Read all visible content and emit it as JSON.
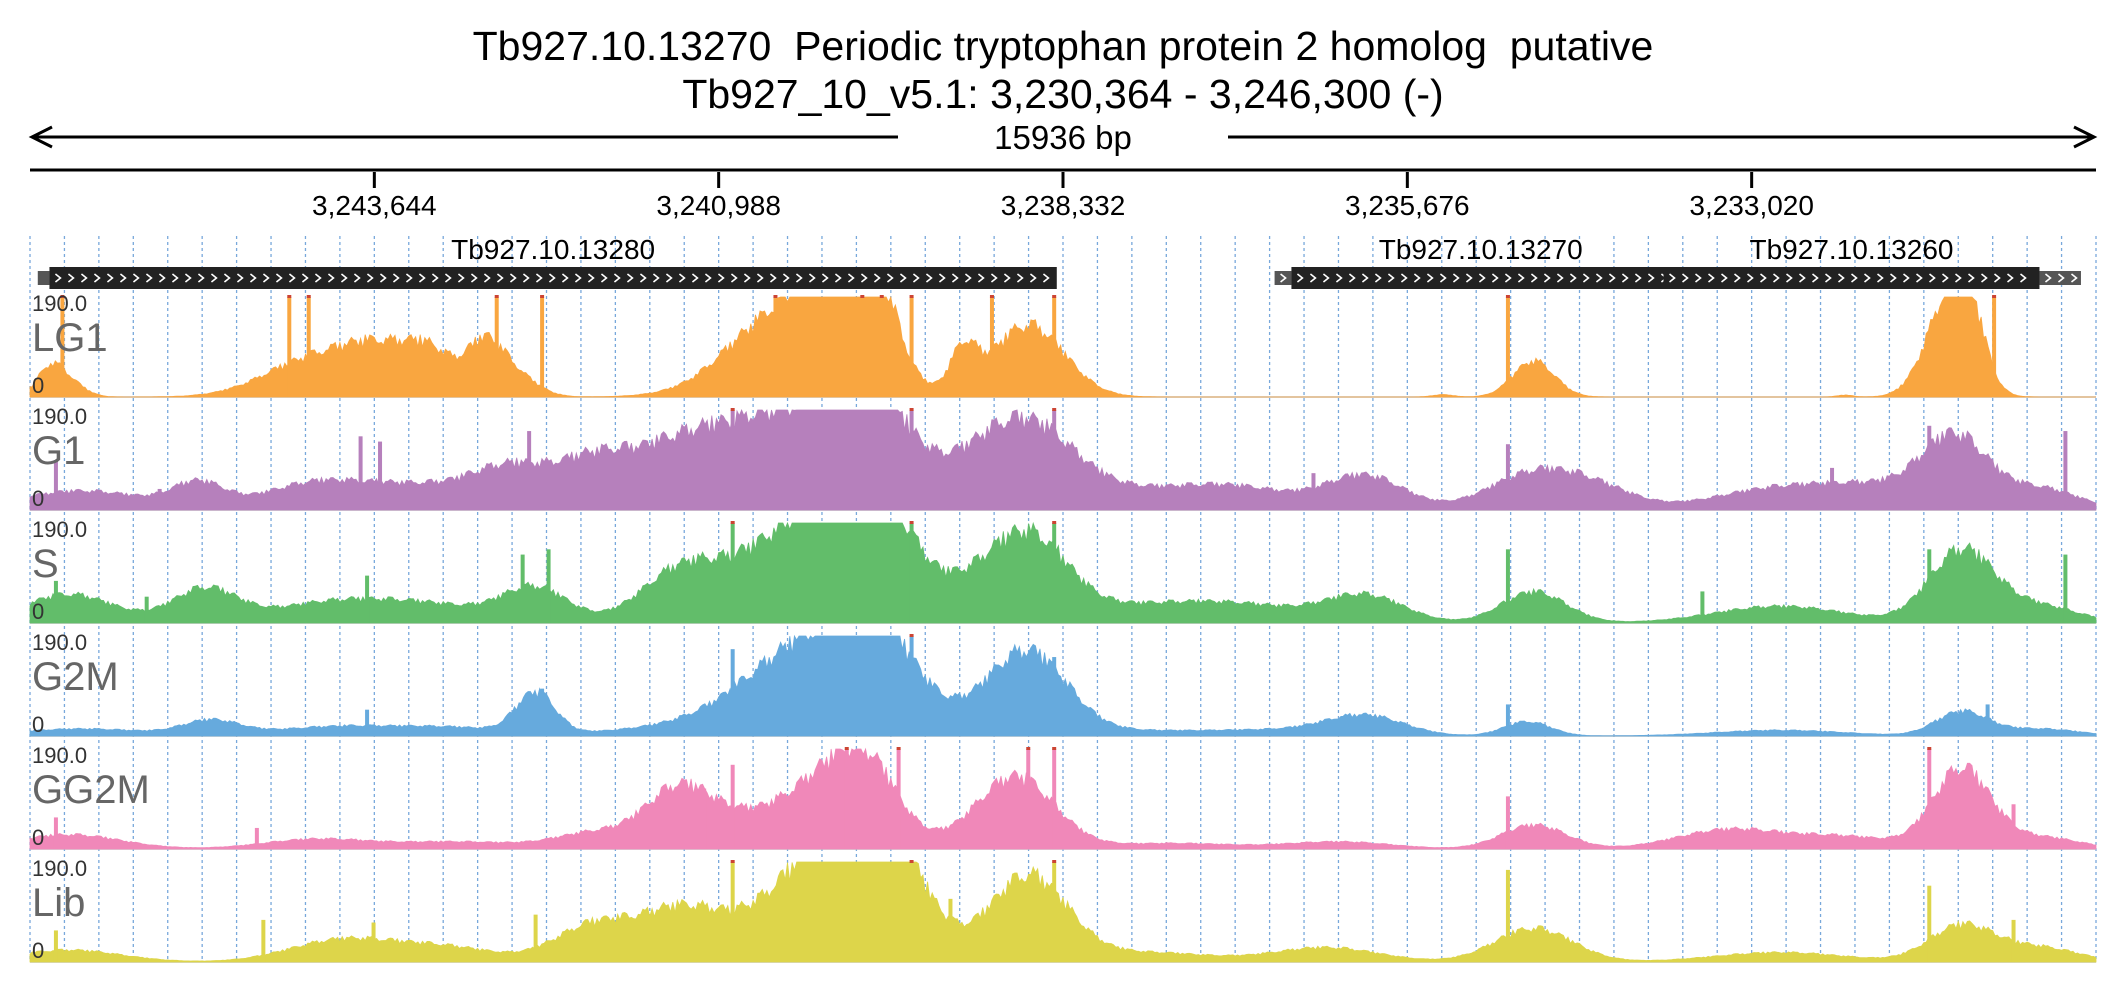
{
  "title": "Tb927.10.13270  Periodic tryptophan protein 2 homolog  putative",
  "subtitle": "Tb927_10_v5.1: 3,230,364 - 3,246,300 (-)",
  "chart_data": {
    "type": "area",
    "chromosome": "Tb927_10_v5.1",
    "region": {
      "start": 3230364,
      "end": 3246300,
      "strand": "-"
    },
    "span_label": "15936 bp",
    "ticks": [
      {
        "pos": 3243644,
        "label": "3,243,644"
      },
      {
        "pos": 3240988,
        "label": "3,240,988"
      },
      {
        "pos": 3238332,
        "label": "3,238,332"
      },
      {
        "pos": 3235676,
        "label": "3,235,676"
      },
      {
        "pos": 3233020,
        "label": "3,233,020"
      }
    ],
    "genes": [
      {
        "name": "Tb927.10.13280",
        "start": 3238380,
        "end": 3246150,
        "label_visible": true
      },
      {
        "name": "Tb927.10.13270",
        "start": 3233650,
        "end": 3236570,
        "label_visible": true
      },
      {
        "name": "Tb927.10.13260",
        "start": 3230800,
        "end": 3233700,
        "label_visible": true
      }
    ],
    "utrs": [
      {
        "start": 3246150,
        "end": 3246240
      },
      {
        "start": 3236570,
        "end": 3236700
      },
      {
        "start": 3233700,
        "end": 3234040
      },
      {
        "start": 3230480,
        "end": 3230800
      }
    ],
    "track_range": {
      "min": 0,
      "max": 190.0,
      "min_label": "0",
      "max_label": "190.0"
    },
    "series": [
      {
        "name": "LG1",
        "color": "#f9a640",
        "peaks": [
          {
            "c": 3246150,
            "w": 100,
            "h": 55
          },
          {
            "c": 3246000,
            "w": 120,
            "h": 30
          },
          {
            "c": 3244100,
            "w": 380,
            "h": 80
          },
          {
            "c": 3243600,
            "w": 260,
            "h": 75
          },
          {
            "c": 3243200,
            "w": 200,
            "h": 82
          },
          {
            "c": 3242800,
            "w": 130,
            "h": 85
          },
          {
            "c": 3242600,
            "w": 180,
            "h": 55
          },
          {
            "c": 3240400,
            "w": 450,
            "h": 178
          },
          {
            "c": 3240050,
            "w": 250,
            "h": 175
          },
          {
            "c": 3239800,
            "w": 180,
            "h": 150
          },
          {
            "c": 3239100,
            "w": 100,
            "h": 85
          },
          {
            "c": 3238600,
            "w": 280,
            "h": 150
          },
          {
            "c": 3240850,
            "w": 200,
            "h": 12
          },
          {
            "c": 3234700,
            "w": 160,
            "h": 75
          },
          {
            "c": 3235400,
            "w": 80,
            "h": 5
          },
          {
            "c": 3231500,
            "w": 180,
            "h": 190
          },
          {
            "c": 3231350,
            "w": 120,
            "h": 120
          },
          {
            "c": 3232300,
            "w": 60,
            "h": 4
          }
        ],
        "spikes": [
          {
            "x": 3246050,
            "h": 190
          },
          {
            "x": 3244300,
            "h": 190
          },
          {
            "x": 3244150,
            "h": 190
          },
          {
            "x": 3242700,
            "h": 190
          },
          {
            "x": 3242350,
            "h": 190
          },
          {
            "x": 3240550,
            "h": 190
          },
          {
            "x": 3239880,
            "h": 190
          },
          {
            "x": 3239730,
            "h": 190
          },
          {
            "x": 3239500,
            "h": 190
          },
          {
            "x": 3238880,
            "h": 190
          },
          {
            "x": 3238400,
            "h": 190
          },
          {
            "x": 3234900,
            "h": 190
          },
          {
            "x": 3231150,
            "h": 190
          }
        ]
      },
      {
        "name": "G1",
        "color": "#b680bc",
        "peaks": [
          {
            "c": 3245900,
            "w": 500,
            "h": 40
          },
          {
            "c": 3245000,
            "w": 200,
            "h": 50
          },
          {
            "c": 3244100,
            "w": 400,
            "h": 55
          },
          {
            "c": 3243300,
            "w": 400,
            "h": 45
          },
          {
            "c": 3242600,
            "w": 300,
            "h": 80
          },
          {
            "c": 3241950,
            "w": 300,
            "h": 95
          },
          {
            "c": 3241300,
            "w": 350,
            "h": 110
          },
          {
            "c": 3240700,
            "w": 400,
            "h": 60
          },
          {
            "c": 3240300,
            "w": 500,
            "h": 160
          },
          {
            "c": 3239800,
            "w": 300,
            "h": 165
          },
          {
            "c": 3239050,
            "w": 300,
            "h": 55
          },
          {
            "c": 3238600,
            "w": 350,
            "h": 160
          },
          {
            "c": 3237900,
            "w": 500,
            "h": 35
          },
          {
            "c": 3237000,
            "w": 450,
            "h": 45
          },
          {
            "c": 3236000,
            "w": 300,
            "h": 70
          },
          {
            "c": 3234700,
            "w": 350,
            "h": 75
          },
          {
            "c": 3234200,
            "w": 300,
            "h": 35
          },
          {
            "c": 3232800,
            "w": 500,
            "h": 45
          },
          {
            "c": 3232000,
            "w": 400,
            "h": 40
          },
          {
            "c": 3231450,
            "w": 250,
            "h": 140
          },
          {
            "c": 3230800,
            "w": 300,
            "h": 45
          }
        ],
        "spikes": [
          {
            "x": 3246100,
            "h": 95
          },
          {
            "x": 3245300,
            "h": 40
          },
          {
            "x": 3243750,
            "h": 140
          },
          {
            "x": 3243600,
            "h": 130
          },
          {
            "x": 3242450,
            "h": 150
          },
          {
            "x": 3241500,
            "h": 120
          },
          {
            "x": 3240880,
            "h": 190
          },
          {
            "x": 3239500,
            "h": 190
          },
          {
            "x": 3238400,
            "h": 190
          },
          {
            "x": 3239200,
            "h": 100
          },
          {
            "x": 3236400,
            "h": 70
          },
          {
            "x": 3234900,
            "h": 125
          },
          {
            "x": 3232400,
            "h": 80
          },
          {
            "x": 3231650,
            "h": 160
          },
          {
            "x": 3230600,
            "h": 150
          }
        ]
      },
      {
        "name": "S",
        "color": "#62bd6a",
        "peaks": [
          {
            "c": 3246000,
            "w": 350,
            "h": 60
          },
          {
            "c": 3244950,
            "w": 250,
            "h": 70
          },
          {
            "c": 3244000,
            "w": 450,
            "h": 40
          },
          {
            "c": 3243200,
            "w": 450,
            "h": 35
          },
          {
            "c": 3242400,
            "w": 250,
            "h": 70
          },
          {
            "c": 3241300,
            "w": 300,
            "h": 85
          },
          {
            "c": 3240700,
            "w": 500,
            "h": 60
          },
          {
            "c": 3240200,
            "w": 450,
            "h": 175
          },
          {
            "c": 3239750,
            "w": 300,
            "h": 170
          },
          {
            "c": 3239050,
            "w": 250,
            "h": 45
          },
          {
            "c": 3238600,
            "w": 300,
            "h": 175
          },
          {
            "c": 3237800,
            "w": 500,
            "h": 30
          },
          {
            "c": 3236950,
            "w": 500,
            "h": 35
          },
          {
            "c": 3236000,
            "w": 300,
            "h": 55
          },
          {
            "c": 3234700,
            "w": 250,
            "h": 65
          },
          {
            "c": 3232800,
            "w": 500,
            "h": 35
          },
          {
            "c": 3231400,
            "w": 250,
            "h": 150
          },
          {
            "c": 3230800,
            "w": 300,
            "h": 35
          }
        ],
        "spikes": [
          {
            "x": 3246100,
            "h": 80
          },
          {
            "x": 3245400,
            "h": 50
          },
          {
            "x": 3243700,
            "h": 90
          },
          {
            "x": 3242500,
            "h": 130
          },
          {
            "x": 3242300,
            "h": 140
          },
          {
            "x": 3240880,
            "h": 190
          },
          {
            "x": 3239500,
            "h": 190
          },
          {
            "x": 3238400,
            "h": 190
          },
          {
            "x": 3234900,
            "h": 140
          },
          {
            "x": 3233400,
            "h": 60
          },
          {
            "x": 3231650,
            "h": 140
          },
          {
            "x": 3230600,
            "h": 130
          }
        ]
      },
      {
        "name": "G2M",
        "color": "#66aadd",
        "peaks": [
          {
            "c": 3245900,
            "w": 500,
            "h": 15
          },
          {
            "c": 3244900,
            "w": 220,
            "h": 30
          },
          {
            "c": 3243900,
            "w": 500,
            "h": 20
          },
          {
            "c": 3243000,
            "w": 400,
            "h": 15
          },
          {
            "c": 3242400,
            "w": 150,
            "h": 85
          },
          {
            "c": 3241500,
            "w": 500,
            "h": 12
          },
          {
            "c": 3240700,
            "w": 450,
            "h": 45
          },
          {
            "c": 3240200,
            "w": 450,
            "h": 165
          },
          {
            "c": 3239750,
            "w": 300,
            "h": 150
          },
          {
            "c": 3239050,
            "w": 300,
            "h": 20
          },
          {
            "c": 3238600,
            "w": 300,
            "h": 170
          },
          {
            "c": 3237800,
            "w": 500,
            "h": 10
          },
          {
            "c": 3236700,
            "w": 500,
            "h": 12
          },
          {
            "c": 3236000,
            "w": 300,
            "h": 40
          },
          {
            "c": 3234750,
            "w": 180,
            "h": 30
          },
          {
            "c": 3232800,
            "w": 500,
            "h": 12
          },
          {
            "c": 3231400,
            "w": 200,
            "h": 50
          },
          {
            "c": 3230800,
            "w": 300,
            "h": 15
          }
        ],
        "spikes": [
          {
            "x": 3243700,
            "h": 50
          },
          {
            "x": 3242350,
            "h": 90
          },
          {
            "x": 3240880,
            "h": 165
          },
          {
            "x": 3239500,
            "h": 190
          },
          {
            "x": 3239200,
            "h": 70
          },
          {
            "x": 3238400,
            "h": 150
          },
          {
            "x": 3234900,
            "h": 60
          },
          {
            "x": 3231200,
            "h": 60
          }
        ]
      },
      {
        "name": "GG2M",
        "color": "#f088b9",
        "peaks": [
          {
            "c": 3246000,
            "w": 400,
            "h": 30
          },
          {
            "c": 3244100,
            "w": 400,
            "h": 20
          },
          {
            "c": 3243000,
            "w": 500,
            "h": 15
          },
          {
            "c": 3241950,
            "w": 300,
            "h": 30
          },
          {
            "c": 3241300,
            "w": 250,
            "h": 100
          },
          {
            "c": 3240500,
            "w": 600,
            "h": 80
          },
          {
            "c": 3240000,
            "w": 300,
            "h": 120
          },
          {
            "c": 3239800,
            "w": 200,
            "h": 60
          },
          {
            "c": 3238700,
            "w": 300,
            "h": 150
          },
          {
            "c": 3237500,
            "w": 500,
            "h": 12
          },
          {
            "c": 3236200,
            "w": 400,
            "h": 15
          },
          {
            "c": 3234700,
            "w": 250,
            "h": 50
          },
          {
            "c": 3233200,
            "w": 400,
            "h": 40
          },
          {
            "c": 3232300,
            "w": 400,
            "h": 25
          },
          {
            "c": 3231400,
            "w": 220,
            "h": 165
          },
          {
            "c": 3230800,
            "w": 300,
            "h": 25
          }
        ],
        "spikes": [
          {
            "x": 3246100,
            "h": 60
          },
          {
            "x": 3244550,
            "h": 40
          },
          {
            "x": 3241100,
            "h": 115
          },
          {
            "x": 3240880,
            "h": 160
          },
          {
            "x": 3240000,
            "h": 190
          },
          {
            "x": 3239600,
            "h": 190
          },
          {
            "x": 3238600,
            "h": 190
          },
          {
            "x": 3238400,
            "h": 190
          },
          {
            "x": 3234900,
            "h": 100
          },
          {
            "x": 3231650,
            "h": 190
          },
          {
            "x": 3231000,
            "h": 85
          }
        ]
      },
      {
        "name": "Lib",
        "color": "#ddd54a",
        "peaks": [
          {
            "c": 3246000,
            "w": 400,
            "h": 25
          },
          {
            "c": 3243900,
            "w": 400,
            "h": 45
          },
          {
            "c": 3243100,
            "w": 400,
            "h": 30
          },
          {
            "c": 3241950,
            "w": 300,
            "h": 75
          },
          {
            "c": 3241300,
            "w": 300,
            "h": 85
          },
          {
            "c": 3240500,
            "w": 550,
            "h": 75
          },
          {
            "c": 3240050,
            "w": 400,
            "h": 178
          },
          {
            "c": 3239700,
            "w": 300,
            "h": 170
          },
          {
            "c": 3238600,
            "w": 300,
            "h": 178
          },
          {
            "c": 3237700,
            "w": 500,
            "h": 20
          },
          {
            "c": 3236300,
            "w": 400,
            "h": 30
          },
          {
            "c": 3234700,
            "w": 300,
            "h": 70
          },
          {
            "c": 3232800,
            "w": 500,
            "h": 20
          },
          {
            "c": 3231400,
            "w": 250,
            "h": 75
          },
          {
            "c": 3230800,
            "w": 300,
            "h": 30
          }
        ],
        "spikes": [
          {
            "x": 3246100,
            "h": 60
          },
          {
            "x": 3244500,
            "h": 80
          },
          {
            "x": 3243650,
            "h": 75
          },
          {
            "x": 3242400,
            "h": 90
          },
          {
            "x": 3240880,
            "h": 190
          },
          {
            "x": 3239500,
            "h": 190
          },
          {
            "x": 3239200,
            "h": 120
          },
          {
            "x": 3238400,
            "h": 190
          },
          {
            "x": 3234900,
            "h": 175
          },
          {
            "x": 3231650,
            "h": 145
          },
          {
            "x": 3231000,
            "h": 80
          }
        ]
      }
    ],
    "grid": true,
    "grid_color": "#6a9fd8"
  }
}
